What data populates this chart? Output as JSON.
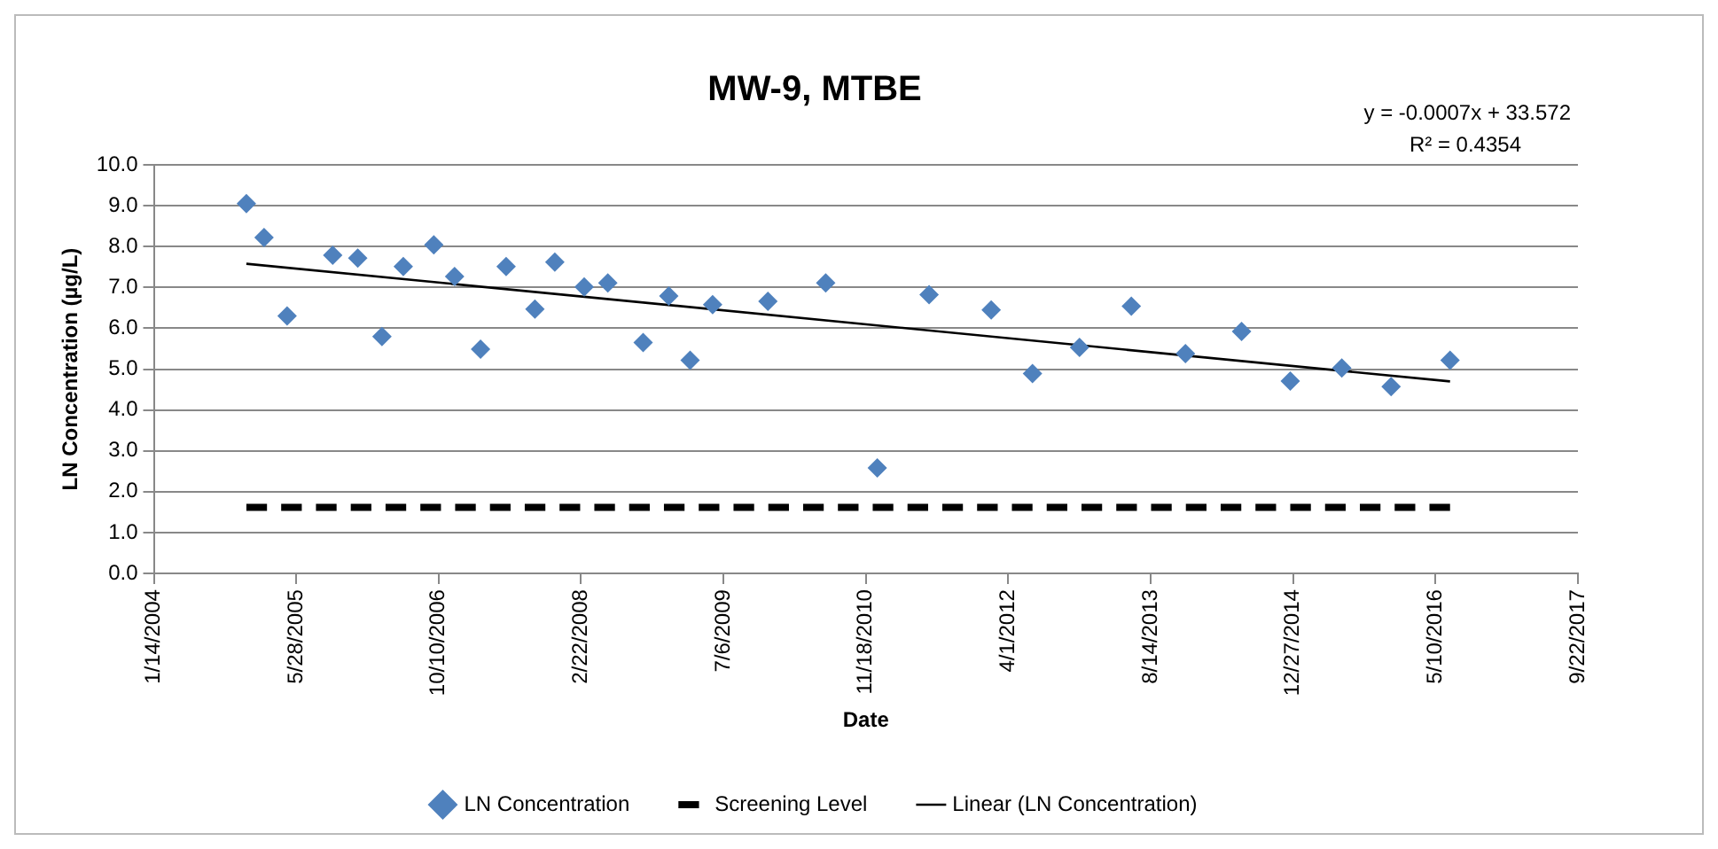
{
  "chart_data": {
    "type": "scatter",
    "title": "MW-9, MTBE",
    "xlabel": "Date",
    "ylabel": "LN Concentration (µg/L)",
    "annotations": [
      "y = -0.0007x + 33.572",
      "R² = 0.4354"
    ],
    "series": [
      {
        "name": "LN Concentration",
        "type": "scatter",
        "color": "#4f81bd",
        "marker": "diamond",
        "x": [
          "2004-12-04",
          "2005-02-04",
          "2005-04-26",
          "2005-10-03",
          "2005-12-30",
          "2006-03-25",
          "2006-06-08",
          "2006-09-23",
          "2006-12-05",
          "2007-03-06",
          "2007-06-04",
          "2007-09-13",
          "2007-11-22",
          "2008-03-04",
          "2008-05-26",
          "2008-09-27",
          "2008-12-26",
          "2009-03-11",
          "2009-05-29",
          "2009-12-09",
          "2010-06-30",
          "2010-12-28",
          "2011-06-28",
          "2012-02-01",
          "2012-06-25",
          "2012-12-07",
          "2013-06-07",
          "2013-12-14",
          "2014-06-29",
          "2014-12-17",
          "2015-06-16",
          "2015-12-06",
          "2016-06-30"
        ],
        "values": [
          9.05,
          8.22,
          6.3,
          7.79,
          7.72,
          5.8,
          7.51,
          8.04,
          7.27,
          5.49,
          7.51,
          6.47,
          7.62,
          7.01,
          7.11,
          5.65,
          6.79,
          5.22,
          6.58,
          6.66,
          7.11,
          2.58,
          6.82,
          6.45,
          4.89,
          5.53,
          6.54,
          5.38,
          5.92,
          4.71,
          5.03,
          4.57,
          5.22
        ]
      },
      {
        "name": "Screening Level",
        "type": "line",
        "color": "#000000",
        "line_style": "dashed",
        "marker": "none",
        "x": [
          "2004-12-04",
          "2016-06-30"
        ],
        "values": [
          1.62,
          1.62
        ]
      },
      {
        "name": "Linear (LN Concentration)",
        "type": "line",
        "color": "#000000",
        "line_style": "solid",
        "marker": "none",
        "x": [
          "2004-12-04",
          "2016-06-30"
        ],
        "values": [
          7.58,
          4.7
        ]
      }
    ],
    "xlim": [
      "2004-01-14",
      "2017-09-22"
    ],
    "xticks": [
      {
        "value": "2004-01-14",
        "label": "1/14/2004"
      },
      {
        "value": "2005-05-28",
        "label": "5/28/2005"
      },
      {
        "value": "2006-10-10",
        "label": "10/10/2006"
      },
      {
        "value": "2008-02-22",
        "label": "2/22/2008"
      },
      {
        "value": "2009-07-06",
        "label": "7/6/2009"
      },
      {
        "value": "2010-11-18",
        "label": "11/18/2010"
      },
      {
        "value": "2012-04-01",
        "label": "4/1/2012"
      },
      {
        "value": "2013-08-14",
        "label": "8/14/2013"
      },
      {
        "value": "2014-12-27",
        "label": "12/27/2014"
      },
      {
        "value": "2016-05-10",
        "label": "5/10/2016"
      },
      {
        "value": "2017-09-22",
        "label": "9/22/2017"
      }
    ],
    "ylim": [
      0,
      10
    ],
    "yticks": [
      {
        "value": 0,
        "label": "0.0"
      },
      {
        "value": 1,
        "label": "1.0"
      },
      {
        "value": 2,
        "label": "2.0"
      },
      {
        "value": 3,
        "label": "3.0"
      },
      {
        "value": 4,
        "label": "4.0"
      },
      {
        "value": 5,
        "label": "5.0"
      },
      {
        "value": 6,
        "label": "6.0"
      },
      {
        "value": 7,
        "label": "7.0"
      },
      {
        "value": 8,
        "label": "8.0"
      },
      {
        "value": 9,
        "label": "9.0"
      },
      {
        "value": 10,
        "label": "10.0"
      }
    ],
    "grid": "y",
    "legend": "bottom"
  }
}
